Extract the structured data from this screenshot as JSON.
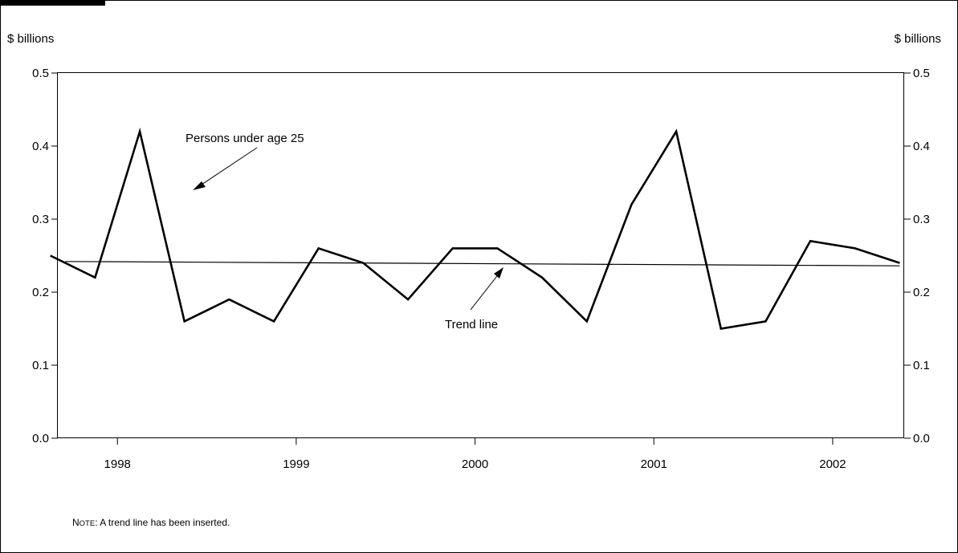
{
  "chart_data": {
    "type": "line",
    "y_unit_label_left": "$ billions",
    "y_unit_label_right": "$ billions",
    "ylim": [
      0.0,
      0.5
    ],
    "y_ticks": [
      "0.0",
      "0.1",
      "0.2",
      "0.3",
      "0.4",
      "0.5"
    ],
    "y_tick_values": [
      0.0,
      0.1,
      0.2,
      0.3,
      0.4,
      0.5
    ],
    "x_tick_labels": [
      "1998",
      "1999",
      "2000",
      "2001",
      "2002"
    ],
    "xlim": [
      "1997-08",
      "2002-05"
    ],
    "grid": false,
    "series": [
      {
        "name": "Persons under age 25",
        "x": [
          "1997-08",
          "1997-11",
          "1998-02",
          "1998-05",
          "1998-08",
          "1998-11",
          "1999-02",
          "1999-05",
          "1999-08",
          "1999-11",
          "2000-02",
          "2000-05",
          "2000-08",
          "2000-11",
          "2001-02",
          "2001-05",
          "2001-08",
          "2001-11",
          "2002-02",
          "2002-05"
        ],
        "values": [
          0.25,
          0.22,
          0.42,
          0.16,
          0.19,
          0.16,
          0.26,
          0.24,
          0.19,
          0.26,
          0.26,
          0.22,
          0.16,
          0.32,
          0.42,
          0.15,
          0.16,
          0.27,
          0.26,
          0.24
        ]
      },
      {
        "name": "Trend line",
        "x": [
          "1997-09",
          "2002-05"
        ],
        "values": [
          0.242,
          0.236
        ]
      }
    ],
    "annotations": [
      {
        "text": "Persons under age 25",
        "points_to": "Persons under age 25"
      },
      {
        "text": "Trend line",
        "points_to": "Trend line"
      }
    ]
  },
  "note": {
    "label_first": "N",
    "label_rest": "OTE",
    "text": ": A trend line has been inserted."
  }
}
